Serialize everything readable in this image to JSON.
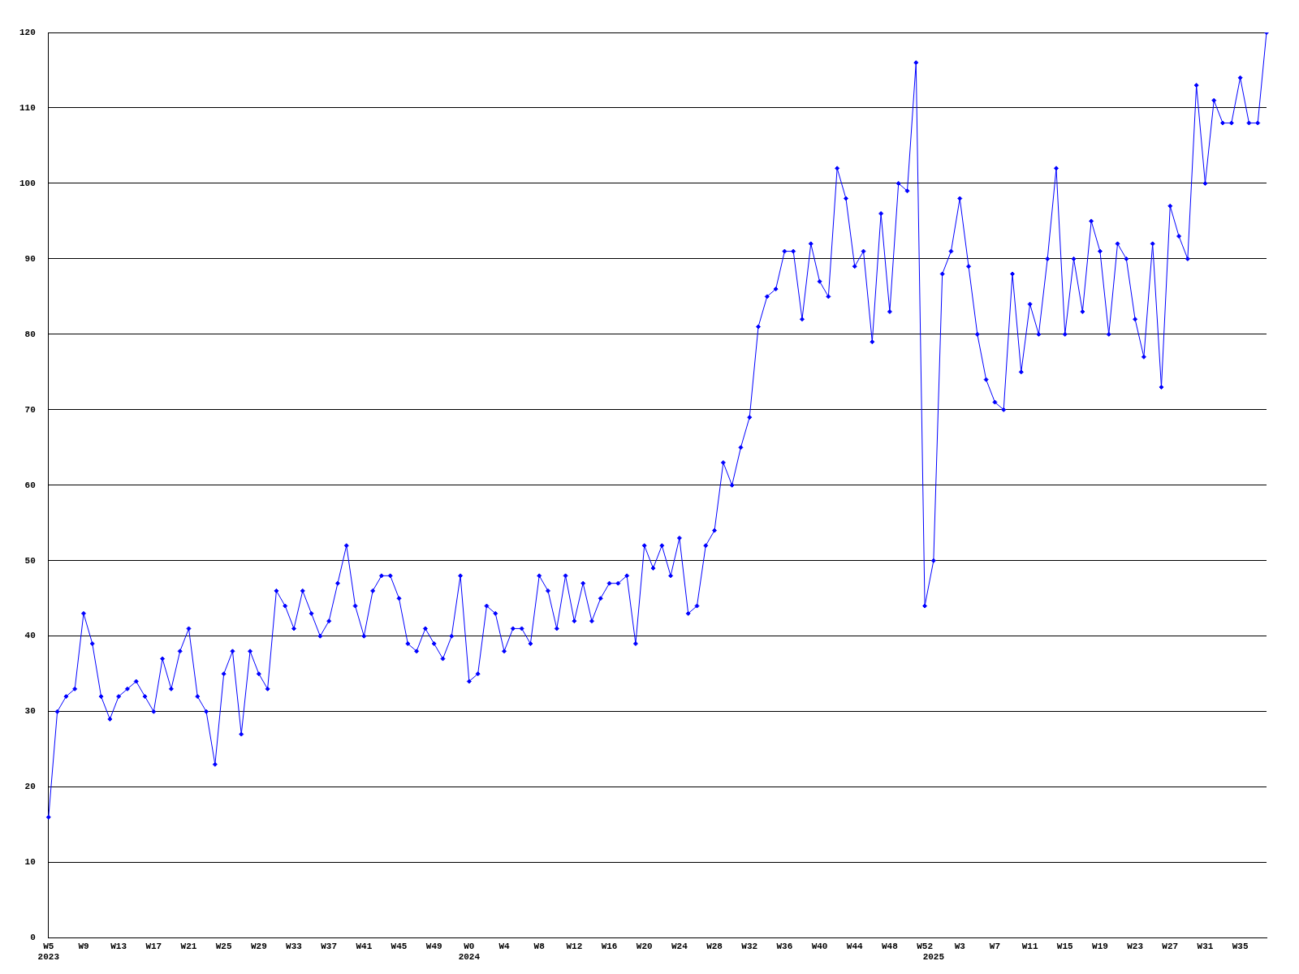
{
  "chart_data": {
    "type": "line",
    "categories": [
      "W5\n2023",
      null,
      null,
      null,
      "W9",
      null,
      null,
      null,
      "W13",
      null,
      null,
      null,
      "W17",
      null,
      null,
      null,
      "W21",
      null,
      null,
      null,
      "W25",
      null,
      null,
      null,
      "W29",
      null,
      null,
      null,
      "W33",
      null,
      null,
      null,
      "W37",
      null,
      null,
      null,
      "W41",
      null,
      null,
      null,
      "W45",
      null,
      null,
      null,
      "W49",
      null,
      null,
      null,
      "W0\n2024",
      null,
      null,
      null,
      "W4",
      null,
      null,
      null,
      "W8",
      null,
      null,
      null,
      "W12",
      null,
      null,
      null,
      "W16",
      null,
      null,
      null,
      "W20",
      null,
      null,
      null,
      "W24",
      null,
      null,
      null,
      "W28",
      null,
      null,
      null,
      "W32",
      null,
      null,
      null,
      "W36",
      null,
      null,
      null,
      "W40",
      null,
      null,
      null,
      "W44",
      null,
      null,
      null,
      "W48",
      null,
      null,
      null,
      "W52",
      "\n2025",
      null,
      null,
      "W3",
      null,
      null,
      null,
      "W7",
      null,
      null,
      null,
      "W11",
      null,
      null,
      null,
      "W15",
      null,
      null,
      null,
      "W19",
      null,
      null,
      null,
      "W23",
      null,
      null,
      null,
      "W27",
      null,
      null,
      null,
      "W31",
      null,
      null,
      null,
      "W35",
      null,
      null,
      null
    ],
    "series": [
      {
        "color": "#0000ff",
        "values": [
          16,
          30,
          32,
          33,
          43,
          39,
          32,
          29,
          32,
          33,
          34,
          32,
          30,
          37,
          33,
          38,
          41,
          32,
          30,
          23,
          35,
          38,
          27,
          38,
          35,
          33,
          46,
          44,
          41,
          46,
          43,
          40,
          42,
          47,
          52,
          44,
          40,
          46,
          48,
          48,
          45,
          39,
          38,
          41,
          39,
          37,
          40,
          48,
          34,
          35,
          44,
          43,
          38,
          41,
          41,
          39,
          48,
          46,
          41,
          48,
          42,
          47,
          42,
          45,
          47,
          47,
          48,
          39,
          52,
          49,
          52,
          48,
          53,
          43,
          44,
          52,
          54,
          63,
          60,
          65,
          69,
          81,
          85,
          86,
          91,
          91,
          82,
          92,
          87,
          85,
          102,
          98,
          89,
          91,
          79,
          96,
          83,
          100,
          99,
          116,
          44,
          50,
          88,
          91,
          98,
          89,
          80,
          74,
          71,
          70,
          88,
          75,
          84,
          80,
          90,
          102,
          80,
          90,
          83,
          95,
          91,
          80,
          92,
          90,
          82,
          77,
          92,
          73,
          97,
          93,
          90,
          113,
          100,
          111,
          108,
          108,
          114,
          108,
          108,
          120
        ]
      }
    ],
    "ylim": [
      0,
      120
    ],
    "yticks": [
      0,
      10,
      20,
      30,
      40,
      50,
      60,
      70,
      80,
      90,
      100,
      110,
      120
    ],
    "grid": "y",
    "legend": false,
    "marker": "diamond",
    "line_style": "solid"
  }
}
